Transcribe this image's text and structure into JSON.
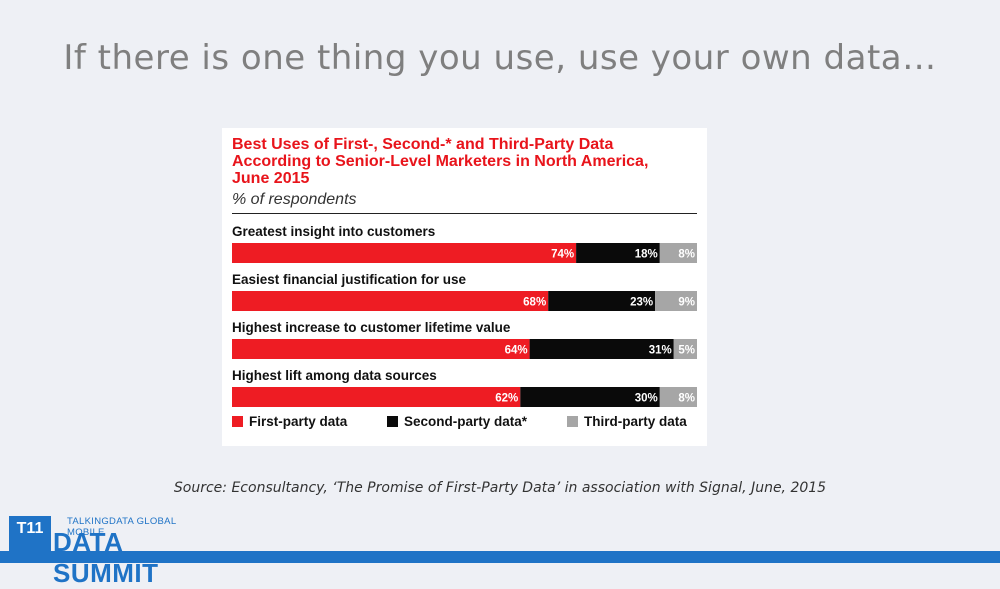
{
  "slide": {
    "title": "If there is one thing you use, use your own data…",
    "source": "Source: Econsultancy, ‘The Promise of First-Party Data’ in association with Signal, June, 2015"
  },
  "logo": {
    "mark_text": "T11",
    "small_text": "TALKINGDATA GLOBAL MOBILE",
    "big_text": "DATA SUMMIT"
  },
  "colors": {
    "first_party": "#ee1c23",
    "second_party": "#0a0a0a",
    "third_party": "#a6a6a6",
    "title_red": "#e8141b",
    "brand_blue": "#1f73c6"
  },
  "chart_data": {
    "type": "bar",
    "orientation": "horizontal-stacked",
    "title_lines": [
      "Best Uses of First-, Second-* and Third-Party Data",
      "According to Senior-Level Marketers in North America,",
      "June 2015"
    ],
    "subtitle": "% of respondents",
    "categories": [
      "Greatest insight into customers",
      "Easiest financial justification for use",
      "Highest increase to customer lifetime value",
      "Highest lift among data sources"
    ],
    "series": [
      {
        "name": "First-party data",
        "values": [
          74,
          68,
          64,
          62
        ]
      },
      {
        "name": "Second-party data*",
        "values": [
          18,
          23,
          31,
          30
        ]
      },
      {
        "name": "Third-party data",
        "values": [
          8,
          9,
          5,
          8
        ]
      }
    ],
    "unit": "%",
    "legend_position": "bottom",
    "grid": false
  }
}
